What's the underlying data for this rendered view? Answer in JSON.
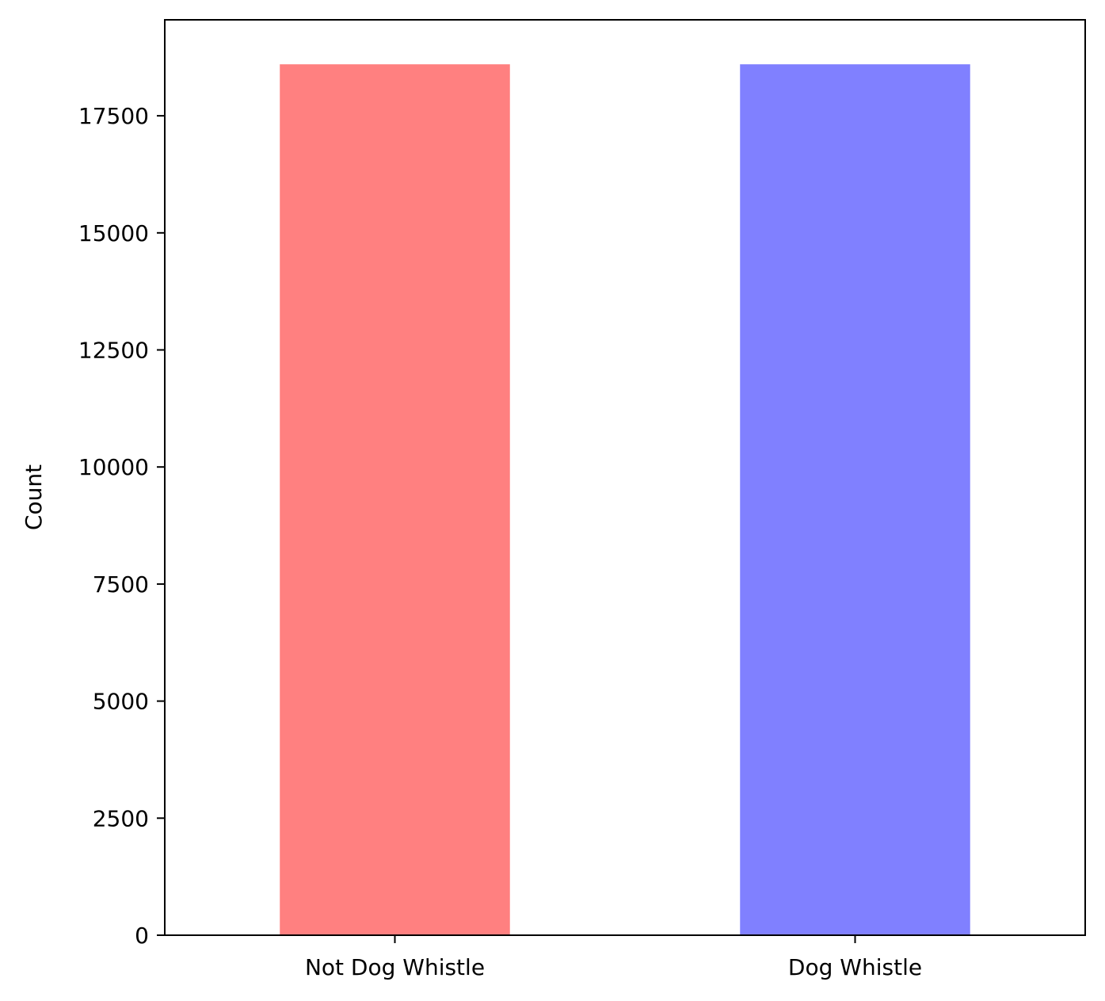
{
  "chart_data": {
    "type": "bar",
    "title": "",
    "xlabel": "",
    "ylabel": "Count",
    "categories": [
      "Not Dog Whistle",
      "Dog Whistle"
    ],
    "values": [
      18600,
      18600
    ],
    "colors": [
      "#ff8080",
      "#8080ff"
    ],
    "ylim": [
      0,
      19550
    ],
    "yticks": [
      0,
      2500,
      5000,
      7500,
      10000,
      12500,
      15000,
      17500
    ],
    "ytick_labels": [
      "0",
      "2500",
      "5000",
      "7500",
      "10000",
      "12500",
      "15000",
      "17500"
    ],
    "grid": false,
    "legend": "none"
  }
}
